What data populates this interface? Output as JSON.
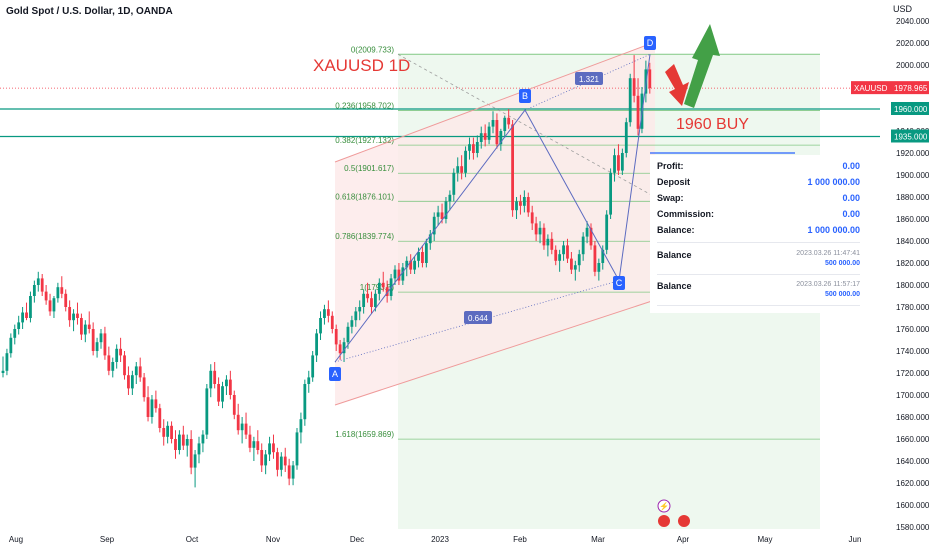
{
  "header": {
    "title": "Gold Spot / U.S. Dollar, 1D, OANDA",
    "currency": "USD"
  },
  "annotations": {
    "chart_title": "XAUUSD 1D",
    "buy_note": "1960 BUY",
    "ab_ratio": "0.644",
    "bd_ratio": "1.321"
  },
  "panel": {
    "rows": [
      {
        "label": "Profit:",
        "value": "0.00"
      },
      {
        "label": "Deposit",
        "value": "1 000 000.00"
      },
      {
        "label": "Swap:",
        "value": "0.00"
      },
      {
        "label": "Commission:",
        "value": "0.00"
      },
      {
        "label": "Balance:",
        "value": "1 000 000.00"
      }
    ],
    "balances": [
      {
        "label": "Balance",
        "timestamp": "2023.03.26 11:47:41",
        "amount": "500 000.00"
      },
      {
        "label": "Balance",
        "timestamp": "2023.03.26 11:57:17",
        "amount": "500 000.00"
      }
    ]
  },
  "chart_data": {
    "type": "candlestick",
    "title": "Gold Spot / U.S. Dollar, 1D, OANDA",
    "instrument": "XAUUSD",
    "ylabel": "USD",
    "ylim": [
      1580,
      2040
    ],
    "y_ticks": [
      1580,
      1600,
      1620,
      1640,
      1660,
      1680,
      1700,
      1720,
      1740,
      1760,
      1780,
      1800,
      1820,
      1840,
      1860,
      1880,
      1900,
      1920,
      1940,
      1960,
      1980,
      2000,
      2020,
      2040
    ],
    "y_tick_labels": [
      "1580.000",
      "1600.000",
      "1620.000",
      "1640.000",
      "1660.000",
      "1680.000",
      "1700.000",
      "1720.000",
      "1740.000",
      "1760.000",
      "1780.000",
      "1800.000",
      "1820.000",
      "1840.000",
      "1860.000",
      "1880.000",
      "1900.000",
      "1920.000",
      "1940.000",
      "1960.000",
      "1980.000",
      "2000.000",
      "2020.000",
      "2040.000"
    ],
    "x_ticks": [
      "Aug",
      "Sep",
      "Oct",
      "Nov",
      "Dec",
      "2023",
      "Feb",
      "Mar",
      "Apr",
      "May",
      "Jun"
    ],
    "price_labels": [
      {
        "label": "XAUUSD",
        "value": "1978.965",
        "price": 1978.965,
        "color": "#f23645"
      },
      {
        "value": "1960.000",
        "price": 1960,
        "color": "#089981"
      },
      {
        "value": "1935.000",
        "price": 1935,
        "color": "#089981"
      }
    ],
    "horizontal_lines": [
      {
        "price": 1960,
        "color": "#089981"
      },
      {
        "price": 1935,
        "color": "#089981"
      }
    ],
    "fib_levels": [
      {
        "level": "0",
        "price": 2009.733,
        "label": "0(2009.733)"
      },
      {
        "level": "0.236",
        "price": 1958.702,
        "label": "0.236(1958.702)"
      },
      {
        "level": "0.382",
        "price": 1927.132,
        "label": "0.382(1927.132)"
      },
      {
        "level": "0.5",
        "price": 1901.617,
        "label": "0.5(1901.617)"
      },
      {
        "level": "0.618",
        "price": 1876.101,
        "label": "0.618(1876.101)"
      },
      {
        "level": "0.786",
        "price": 1839.774,
        "label": "0.786(1839.774)"
      },
      {
        "level": "1",
        "price": 1793.5,
        "label": "1(1793.5)"
      },
      {
        "level": "1.618",
        "price": 1659.869,
        "label": "1.618(1659.869)"
      }
    ],
    "pattern_points": [
      {
        "name": "A",
        "date": "2022-11-23",
        "price": 1730
      },
      {
        "name": "B",
        "date": "2023-02-02",
        "price": 1959
      },
      {
        "name": "C",
        "date": "2023-02-28",
        "price": 1804
      },
      {
        "name": "D",
        "date": "2023-03-20",
        "price": 2009.7
      }
    ],
    "candles": [
      [
        1720,
        1735,
        1716,
        1722
      ],
      [
        1722,
        1742,
        1718,
        1738
      ],
      [
        1738,
        1756,
        1734,
        1752
      ],
      [
        1752,
        1764,
        1746,
        1760
      ],
      [
        1760,
        1772,
        1755,
        1766
      ],
      [
        1766,
        1780,
        1760,
        1775
      ],
      [
        1775,
        1784,
        1768,
        1770
      ],
      [
        1770,
        1794,
        1766,
        1790
      ],
      [
        1790,
        1804,
        1784,
        1800
      ],
      [
        1800,
        1812,
        1794,
        1806
      ],
      [
        1806,
        1810,
        1790,
        1794
      ],
      [
        1794,
        1800,
        1782,
        1786
      ],
      [
        1786,
        1792,
        1772,
        1776
      ],
      [
        1776,
        1790,
        1770,
        1788
      ],
      [
        1788,
        1802,
        1784,
        1798
      ],
      [
        1798,
        1808,
        1788,
        1792
      ],
      [
        1792,
        1796,
        1776,
        1780
      ],
      [
        1780,
        1786,
        1762,
        1768
      ],
      [
        1768,
        1778,
        1758,
        1774
      ],
      [
        1774,
        1784,
        1764,
        1770
      ],
      [
        1770,
        1774,
        1750,
        1755
      ],
      [
        1755,
        1768,
        1748,
        1764
      ],
      [
        1764,
        1776,
        1756,
        1760
      ],
      [
        1760,
        1766,
        1736,
        1740
      ],
      [
        1740,
        1752,
        1734,
        1748
      ],
      [
        1748,
        1760,
        1742,
        1756
      ],
      [
        1756,
        1762,
        1732,
        1736
      ],
      [
        1736,
        1744,
        1718,
        1722
      ],
      [
        1722,
        1734,
        1716,
        1730
      ],
      [
        1730,
        1746,
        1724,
        1742
      ],
      [
        1742,
        1752,
        1730,
        1736
      ],
      [
        1736,
        1740,
        1714,
        1718
      ],
      [
        1718,
        1726,
        1700,
        1706
      ],
      [
        1706,
        1722,
        1700,
        1718
      ],
      [
        1718,
        1730,
        1710,
        1726
      ],
      [
        1726,
        1734,
        1712,
        1716
      ],
      [
        1716,
        1720,
        1694,
        1698
      ],
      [
        1698,
        1708,
        1676,
        1680
      ],
      [
        1680,
        1700,
        1674,
        1696
      ],
      [
        1696,
        1704,
        1684,
        1688
      ],
      [
        1688,
        1692,
        1666,
        1670
      ],
      [
        1670,
        1678,
        1654,
        1662
      ],
      [
        1662,
        1676,
        1656,
        1672
      ],
      [
        1672,
        1676,
        1656,
        1660
      ],
      [
        1660,
        1668,
        1642,
        1650
      ],
      [
        1650,
        1668,
        1646,
        1664
      ],
      [
        1664,
        1672,
        1650,
        1654
      ],
      [
        1654,
        1664,
        1644,
        1660
      ],
      [
        1660,
        1668,
        1628,
        1634
      ],
      [
        1634,
        1650,
        1616,
        1646
      ],
      [
        1646,
        1662,
        1638,
        1656
      ],
      [
        1656,
        1668,
        1648,
        1664
      ],
      [
        1664,
        1710,
        1660,
        1706
      ],
      [
        1706,
        1728,
        1698,
        1722
      ],
      [
        1722,
        1730,
        1706,
        1710
      ],
      [
        1710,
        1716,
        1690,
        1694
      ],
      [
        1694,
        1712,
        1688,
        1708
      ],
      [
        1708,
        1718,
        1700,
        1714
      ],
      [
        1714,
        1722,
        1696,
        1700
      ],
      [
        1700,
        1704,
        1678,
        1682
      ],
      [
        1682,
        1692,
        1664,
        1668
      ],
      [
        1668,
        1680,
        1656,
        1674
      ],
      [
        1674,
        1684,
        1660,
        1664
      ],
      [
        1664,
        1672,
        1648,
        1652
      ],
      [
        1652,
        1662,
        1640,
        1658
      ],
      [
        1658,
        1668,
        1646,
        1650
      ],
      [
        1650,
        1656,
        1630,
        1636
      ],
      [
        1636,
        1650,
        1628,
        1646
      ],
      [
        1646,
        1662,
        1640,
        1656
      ],
      [
        1656,
        1664,
        1642,
        1648
      ],
      [
        1648,
        1652,
        1626,
        1632
      ],
      [
        1632,
        1648,
        1626,
        1644
      ],
      [
        1644,
        1652,
        1630,
        1636
      ],
      [
        1636,
        1642,
        1618,
        1624
      ],
      [
        1624,
        1640,
        1618,
        1636
      ],
      [
        1636,
        1670,
        1632,
        1666
      ],
      [
        1666,
        1684,
        1656,
        1678
      ],
      [
        1678,
        1714,
        1672,
        1710
      ],
      [
        1710,
        1722,
        1702,
        1716
      ],
      [
        1716,
        1740,
        1712,
        1736
      ],
      [
        1736,
        1760,
        1730,
        1756
      ],
      [
        1756,
        1776,
        1750,
        1770
      ],
      [
        1770,
        1782,
        1764,
        1778
      ],
      [
        1778,
        1786,
        1766,
        1772
      ],
      [
        1772,
        1776,
        1756,
        1760
      ],
      [
        1760,
        1764,
        1740,
        1746
      ],
      [
        1746,
        1750,
        1732,
        1738
      ],
      [
        1738,
        1752,
        1730,
        1748
      ],
      [
        1748,
        1766,
        1742,
        1762
      ],
      [
        1762,
        1772,
        1756,
        1768
      ],
      [
        1768,
        1780,
        1762,
        1776
      ],
      [
        1776,
        1786,
        1768,
        1780
      ],
      [
        1780,
        1796,
        1774,
        1792
      ],
      [
        1792,
        1802,
        1784,
        1788
      ],
      [
        1788,
        1794,
        1774,
        1780
      ],
      [
        1780,
        1796,
        1776,
        1792
      ],
      [
        1792,
        1806,
        1786,
        1802
      ],
      [
        1802,
        1812,
        1794,
        1798
      ],
      [
        1798,
        1804,
        1784,
        1790
      ],
      [
        1790,
        1810,
        1786,
        1806
      ],
      [
        1806,
        1818,
        1800,
        1814
      ],
      [
        1814,
        1820,
        1800,
        1804
      ],
      [
        1804,
        1820,
        1800,
        1816
      ],
      [
        1816,
        1826,
        1808,
        1822
      ],
      [
        1822,
        1828,
        1810,
        1814
      ],
      [
        1814,
        1826,
        1810,
        1822
      ],
      [
        1822,
        1834,
        1816,
        1830
      ],
      [
        1830,
        1836,
        1816,
        1820
      ],
      [
        1820,
        1842,
        1816,
        1838
      ],
      [
        1838,
        1850,
        1832,
        1846
      ],
      [
        1846,
        1866,
        1840,
        1862
      ],
      [
        1862,
        1872,
        1854,
        1866
      ],
      [
        1866,
        1874,
        1856,
        1860
      ],
      [
        1860,
        1880,
        1856,
        1876
      ],
      [
        1876,
        1886,
        1868,
        1882
      ],
      [
        1882,
        1906,
        1876,
        1902
      ],
      [
        1902,
        1916,
        1894,
        1908
      ],
      [
        1908,
        1918,
        1896,
        1902
      ],
      [
        1902,
        1926,
        1898,
        1922
      ],
      [
        1922,
        1934,
        1914,
        1928
      ],
      [
        1928,
        1934,
        1914,
        1920
      ],
      [
        1920,
        1936,
        1916,
        1930
      ],
      [
        1930,
        1944,
        1924,
        1938
      ],
      [
        1938,
        1946,
        1926,
        1932
      ],
      [
        1932,
        1948,
        1928,
        1944
      ],
      [
        1944,
        1958,
        1938,
        1950
      ],
      [
        1950,
        1956,
        1924,
        1928
      ],
      [
        1928,
        1942,
        1922,
        1940
      ],
      [
        1940,
        1954,
        1934,
        1952
      ],
      [
        1952,
        1960,
        1942,
        1946
      ],
      [
        1946,
        1950,
        1862,
        1868
      ],
      [
        1868,
        1880,
        1860,
        1876
      ],
      [
        1876,
        1882,
        1864,
        1872
      ],
      [
        1872,
        1886,
        1866,
        1880
      ],
      [
        1880,
        1884,
        1862,
        1866
      ],
      [
        1866,
        1872,
        1850,
        1856
      ],
      [
        1856,
        1862,
        1840,
        1846
      ],
      [
        1846,
        1858,
        1838,
        1852
      ],
      [
        1852,
        1856,
        1832,
        1836
      ],
      [
        1836,
        1846,
        1826,
        1842
      ],
      [
        1842,
        1848,
        1828,
        1832
      ],
      [
        1832,
        1836,
        1818,
        1822
      ],
      [
        1822,
        1832,
        1812,
        1828
      ],
      [
        1828,
        1840,
        1822,
        1836
      ],
      [
        1836,
        1842,
        1820,
        1824
      ],
      [
        1824,
        1830,
        1810,
        1814
      ],
      [
        1814,
        1822,
        1804,
        1818
      ],
      [
        1818,
        1832,
        1812,
        1828
      ],
      [
        1828,
        1848,
        1822,
        1844
      ],
      [
        1844,
        1858,
        1838,
        1852
      ],
      [
        1852,
        1856,
        1832,
        1836
      ],
      [
        1836,
        1840,
        1808,
        1812
      ],
      [
        1812,
        1824,
        1804,
        1820
      ],
      [
        1820,
        1836,
        1814,
        1832
      ],
      [
        1832,
        1868,
        1828,
        1864
      ],
      [
        1864,
        1906,
        1860,
        1902
      ],
      [
        1902,
        1924,
        1894,
        1918
      ],
      [
        1918,
        1928,
        1900,
        1904
      ],
      [
        1904,
        1924,
        1900,
        1920
      ],
      [
        1920,
        1952,
        1916,
        1948
      ],
      [
        1948,
        1992,
        1944,
        1988
      ],
      [
        1988,
        2009,
        1966,
        1972
      ],
      [
        1972,
        1988,
        1936,
        1942
      ],
      [
        1942,
        1980,
        1938,
        1974
      ],
      [
        1974,
        2004,
        1966,
        1996
      ],
      [
        1996,
        2002,
        1974,
        1979
      ]
    ]
  }
}
